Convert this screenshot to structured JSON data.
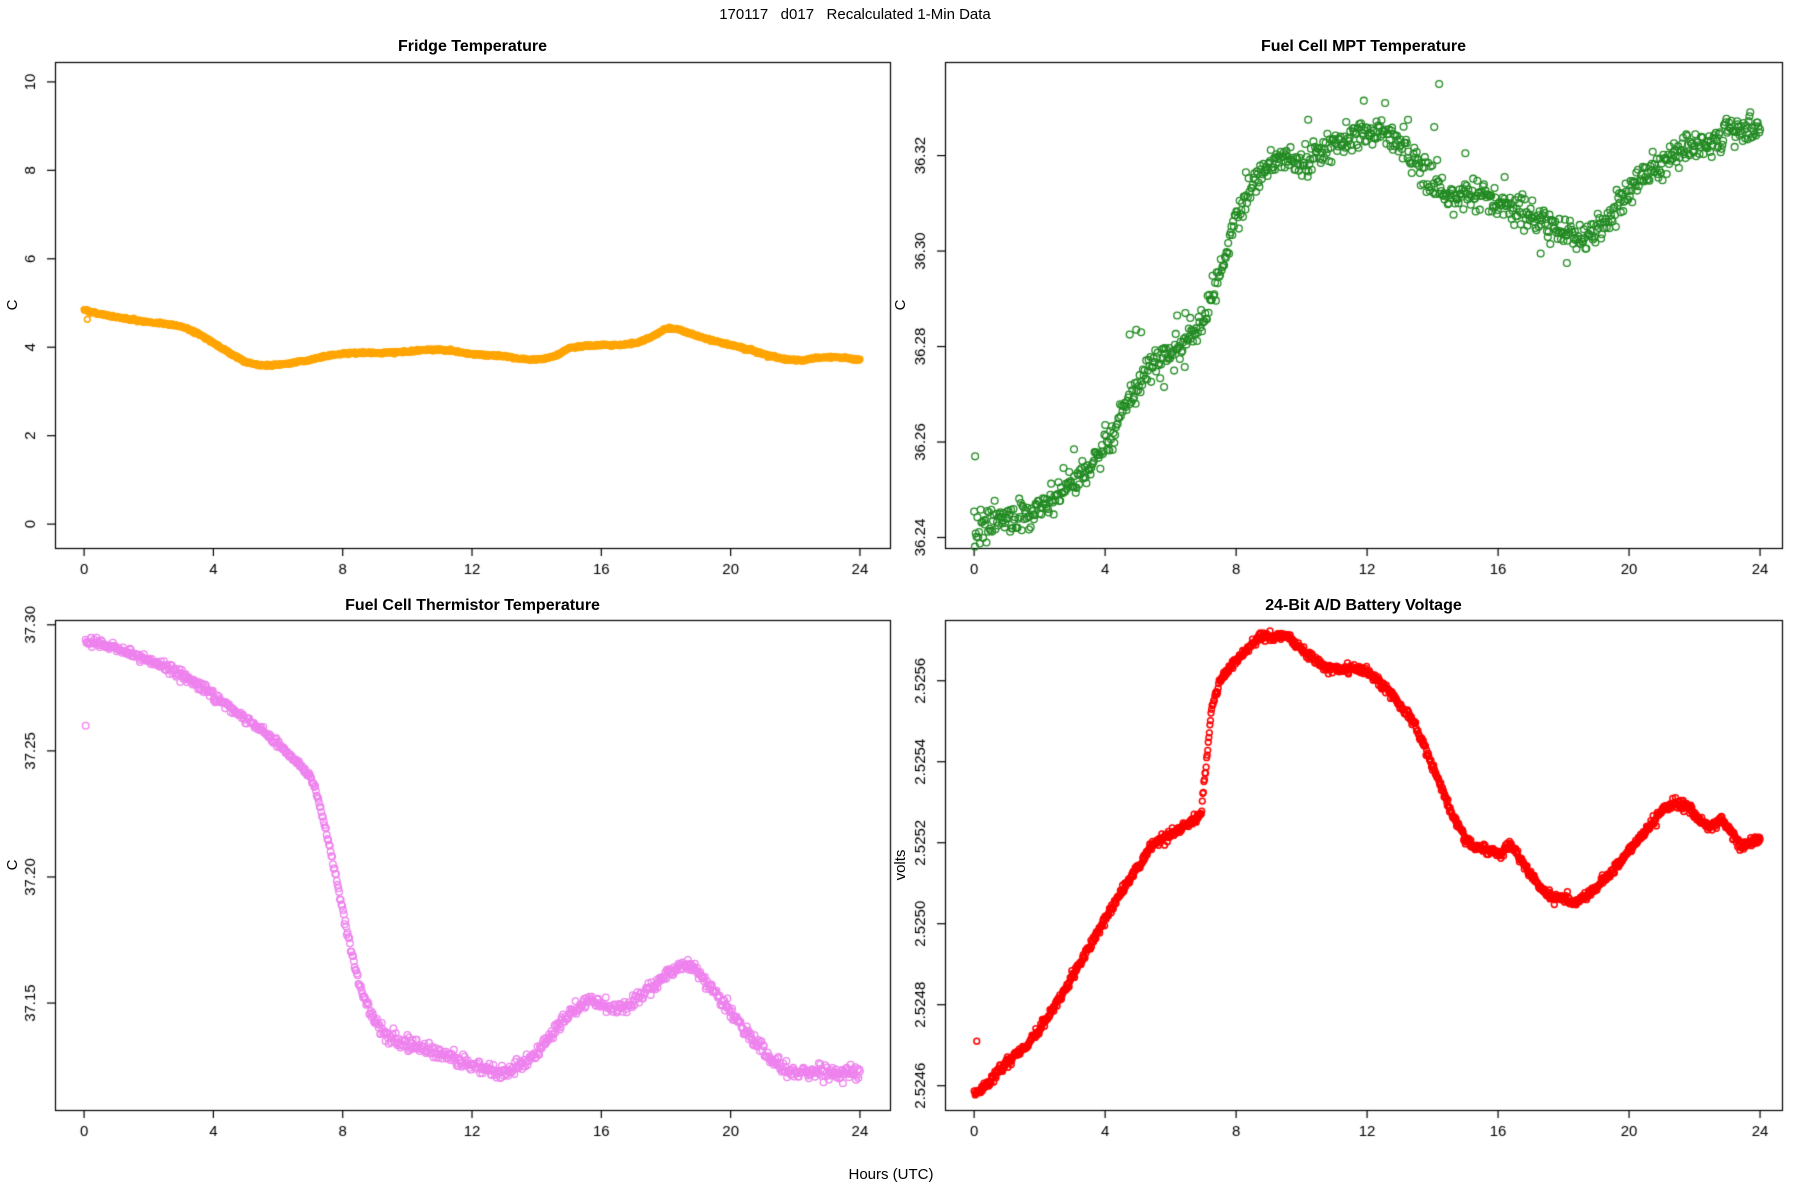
{
  "figure": {
    "main_title": "170117   d017   Recalculated 1-Min Data",
    "outer_xlabel": "Hours (UTC)",
    "background": "#ffffff",
    "axis_color": "#000000"
  },
  "chart_data": [
    {
      "id": "fridge-temperature",
      "type": "scatter",
      "title": "Fridge Temperature",
      "ylabel": "C",
      "marker": "open-circle",
      "color": "#FFA500",
      "xlim": [
        -0.9,
        24.93
      ],
      "ylim": [
        -0.54,
        10.45
      ],
      "xticks": [
        0,
        4,
        8,
        12,
        16,
        20,
        24
      ],
      "xtick_labels": [
        "0",
        "4",
        "8",
        "12",
        "16",
        "20",
        "24"
      ],
      "yticks": [
        0,
        2,
        4,
        6,
        8,
        10
      ],
      "ytick_labels": [
        "0",
        "2",
        "4",
        "6",
        "8",
        "10"
      ],
      "x_data_range": [
        0,
        24
      ],
      "n_points": 1441,
      "noise_sd": 0.012,
      "series_keypoints": {
        "x": [
          0,
          0.3,
          1,
          1.5,
          2,
          2.5,
          2.8,
          3.2,
          3.6,
          4,
          4.5,
          5,
          5.4,
          5.8,
          6.3,
          7,
          7.6,
          8,
          8.6,
          9.2,
          10,
          10.6,
          11,
          11.4,
          12,
          12.6,
          13,
          13.4,
          13.8,
          14.2,
          14.6,
          15,
          15.4,
          16,
          16.6,
          17.2,
          17.6,
          18,
          18.3,
          18.7,
          19.2,
          19.7,
          20.2,
          20.7,
          21.2,
          21.7,
          22.2,
          22.7,
          23.2,
          23.6,
          24
        ],
        "y": [
          4.85,
          4.78,
          4.68,
          4.62,
          4.57,
          4.53,
          4.5,
          4.42,
          4.28,
          4.1,
          3.87,
          3.67,
          3.6,
          3.59,
          3.63,
          3.72,
          3.82,
          3.86,
          3.88,
          3.87,
          3.9,
          3.94,
          3.95,
          3.92,
          3.84,
          3.82,
          3.8,
          3.75,
          3.72,
          3.73,
          3.81,
          3.98,
          4.03,
          4.05,
          4.05,
          4.12,
          4.25,
          4.43,
          4.42,
          4.32,
          4.2,
          4.1,
          4.02,
          3.92,
          3.8,
          3.73,
          3.7,
          3.76,
          3.78,
          3.75,
          3.72
        ]
      },
      "outliers": [
        [
          0.1,
          4.63
        ]
      ]
    },
    {
      "id": "fuel-cell-mpt-temperature",
      "type": "scatter",
      "title": "Fuel Cell MPT Temperature",
      "ylabel": "C",
      "marker": "open-circle",
      "color": "#228B22",
      "xlim": [
        -0.89,
        24.67
      ],
      "ylim": [
        36.2378,
        36.3396
      ],
      "xticks": [
        0,
        4,
        8,
        12,
        16,
        20,
        24
      ],
      "xtick_labels": [
        "0",
        "4",
        "8",
        "12",
        "16",
        "20",
        "24"
      ],
      "yticks": [
        36.24,
        36.26,
        36.28,
        36.3,
        36.32
      ],
      "ytick_labels": [
        "36.24",
        "36.26",
        "36.28",
        "36.30",
        "36.32"
      ],
      "x_data_range": [
        0,
        24
      ],
      "n_points": 960,
      "noise_sd": 0.0016,
      "noise_profile": [
        [
          0,
          0.002
        ],
        [
          3,
          0.0016
        ],
        [
          6,
          0.0018
        ],
        [
          7.5,
          0.0012
        ],
        [
          9,
          0.0016
        ],
        [
          24,
          0.0015
        ]
      ],
      "series_keypoints": {
        "x": [
          0,
          0.4,
          0.8,
          1.2,
          1.6,
          2,
          2.4,
          2.8,
          3.2,
          3.6,
          4,
          4.4,
          4.8,
          5.2,
          5.6,
          6,
          6.4,
          6.8,
          7.2,
          7.6,
          8,
          8.4,
          8.8,
          9.2,
          9.6,
          10,
          10.4,
          10.8,
          11.2,
          11.6,
          12,
          12.4,
          12.8,
          13.2,
          13.6,
          14,
          14.4,
          14.8,
          15.2,
          15.6,
          16,
          16.4,
          16.8,
          17.2,
          17.6,
          18,
          18.4,
          18.8,
          19.2,
          19.6,
          20,
          20.4,
          20.8,
          21.2,
          21.6,
          22,
          22.4,
          22.8,
          23.2,
          23.6,
          24
        ],
        "y": [
          36.2415,
          36.2425,
          36.2435,
          36.2445,
          36.2455,
          36.2465,
          36.248,
          36.25,
          36.2525,
          36.2555,
          36.259,
          36.2635,
          36.269,
          36.2735,
          36.2775,
          36.2795,
          36.2805,
          36.2825,
          36.289,
          36.298,
          36.3065,
          36.3125,
          36.3165,
          36.319,
          36.3195,
          36.3185,
          36.3195,
          36.3215,
          36.3235,
          36.3245,
          36.325,
          36.3255,
          36.324,
          36.321,
          36.3175,
          36.3145,
          36.3125,
          36.3115,
          36.312,
          36.3115,
          36.31,
          36.3085,
          36.3075,
          36.3065,
          36.306,
          36.304,
          36.3025,
          36.3035,
          36.306,
          36.309,
          36.3125,
          36.3155,
          36.318,
          36.3195,
          36.321,
          36.3225,
          36.322,
          36.3235,
          36.3245,
          36.3255,
          36.326
        ]
      },
      "outliers": [
        [
          0.03,
          36.257
        ],
        [
          14.2,
          36.335
        ],
        [
          4.75,
          36.2825
        ],
        [
          4.95,
          36.2835
        ],
        [
          5.1,
          36.283
        ],
        [
          6.2,
          36.2865
        ],
        [
          6.45,
          36.287
        ],
        [
          6.6,
          36.286
        ],
        [
          5.8,
          36.2715
        ],
        [
          3.05,
          36.2585
        ],
        [
          13.25,
          36.3275
        ],
        [
          14.05,
          36.326
        ],
        [
          15.0,
          36.3205
        ],
        [
          16.2,
          36.3155
        ],
        [
          17.3,
          36.2995
        ],
        [
          18.1,
          36.2975
        ],
        [
          12.55,
          36.331
        ],
        [
          11.9,
          36.3315
        ],
        [
          10.2,
          36.3275
        ],
        [
          8.3,
          36.3165
        ]
      ]
    },
    {
      "id": "fuel-cell-thermistor-temperature",
      "type": "scatter",
      "title": "Fuel Cell Thermistor Temperature",
      "ylabel": "C",
      "marker": "open-circle",
      "color": "#EE82EE",
      "xlim": [
        -0.9,
        24.93
      ],
      "ylim": [
        37.1076,
        37.3019
      ],
      "xticks": [
        0,
        4,
        8,
        12,
        16,
        20,
        24
      ],
      "xtick_labels": [
        "0",
        "4",
        "8",
        "12",
        "16",
        "20",
        "24"
      ],
      "yticks": [
        37.15,
        37.2,
        37.25,
        37.3
      ],
      "ytick_labels": [
        "37.15",
        "37.20",
        "37.25",
        "37.30"
      ],
      "x_data_range": [
        0.05,
        24
      ],
      "n_points": 1000,
      "noise_sd": 0.0011,
      "noise_profile": [
        [
          0,
          0.0008
        ],
        [
          3,
          0.001
        ],
        [
          6,
          0.0008
        ],
        [
          7.6,
          0.0005
        ],
        [
          9,
          0.0012
        ],
        [
          12,
          0.0014
        ],
        [
          15,
          0.0012
        ],
        [
          18,
          0.001
        ],
        [
          21,
          0.0014
        ],
        [
          24,
          0.0014
        ]
      ],
      "series_keypoints": {
        "x": [
          0.1,
          0.5,
          1,
          1.5,
          2,
          2.5,
          3,
          3.5,
          4,
          4.5,
          5,
          5.5,
          6,
          6.3,
          6.6,
          7,
          7.2,
          7.4,
          7.6,
          7.8,
          8,
          8.2,
          8.4,
          8.6,
          8.8,
          9,
          9.3,
          9.6,
          10,
          10.5,
          11,
          11.5,
          12,
          12.4,
          12.8,
          13.2,
          13.6,
          14,
          14.4,
          14.8,
          15.2,
          15.6,
          16,
          16.4,
          16.8,
          17.2,
          17.6,
          18,
          18.4,
          18.8,
          19.2,
          19.6,
          20,
          20.4,
          20.8,
          21.2,
          21.6,
          22,
          22.4,
          22.8,
          23.2,
          23.6,
          24
        ],
        "y": [
          37.294,
          37.2925,
          37.2905,
          37.2885,
          37.286,
          37.2835,
          37.2805,
          37.2765,
          37.272,
          37.2675,
          37.2625,
          37.258,
          37.2525,
          37.2495,
          37.2455,
          37.24,
          37.2335,
          37.2225,
          37.2115,
          37.1995,
          37.1875,
          37.1745,
          37.163,
          37.1545,
          37.1475,
          37.1425,
          37.138,
          37.1355,
          37.1335,
          37.132,
          37.1305,
          37.1285,
          37.1245,
          37.1235,
          37.1225,
          37.1235,
          37.1265,
          37.13,
          37.1365,
          37.1425,
          37.1475,
          37.1515,
          37.1495,
          37.1475,
          37.149,
          37.1525,
          37.1565,
          37.161,
          37.1645,
          37.1645,
          37.159,
          37.1525,
          37.1465,
          37.1405,
          37.134,
          37.128,
          37.1245,
          37.1225,
          37.1225,
          37.123,
          37.1225,
          37.1225,
          37.1225
        ]
      },
      "outliers": [
        [
          0.05,
          37.26
        ]
      ]
    },
    {
      "id": "battery-voltage",
      "type": "scatter",
      "title": "24-Bit A/D Battery Voltage",
      "ylabel": "volts",
      "marker": "open-circle",
      "color": "#FF0000",
      "xlim": [
        -0.89,
        24.67
      ],
      "ylim": [
        2.52454,
        2.52575
      ],
      "xticks": [
        0,
        4,
        8,
        12,
        16,
        20,
        24
      ],
      "xtick_labels": [
        "0",
        "4",
        "8",
        "12",
        "16",
        "20",
        "24"
      ],
      "yticks": [
        2.5246,
        2.5248,
        2.525,
        2.5252,
        2.5254,
        2.5256
      ],
      "ytick_labels": [
        "2.5246",
        "2.5248",
        "2.5250",
        "2.5252",
        "2.5254",
        "2.5256"
      ],
      "x_data_range": [
        0,
        24
      ],
      "n_points": 1441,
      "noise_sd": 5.5e-06,
      "series_keypoints": {
        "x": [
          0,
          0.5,
          1,
          1.5,
          2,
          2.5,
          3,
          3.5,
          4,
          4.5,
          5,
          5.4,
          5.7,
          6.2,
          6.6,
          6.93,
          7.25,
          7.5,
          8,
          8.5,
          8.7,
          9.6,
          10,
          10.4,
          10.8,
          11.4,
          11.8,
          12.2,
          12.6,
          13,
          13.4,
          13.8,
          14.2,
          14.6,
          15,
          15.3,
          15.8,
          16.1,
          16.35,
          16.6,
          17,
          17.5,
          18,
          18.3,
          18.7,
          19,
          19.5,
          20,
          20.5,
          21,
          21.4,
          21.8,
          22.2,
          22.5,
          22.8,
          23.1,
          23.4,
          23.7,
          24
        ],
        "y": [
          2.52458,
          2.52461,
          2.52466,
          2.52469,
          2.52474,
          2.5248,
          2.52487,
          2.52494,
          2.52501,
          2.52508,
          2.52514,
          2.52519,
          2.52521,
          2.52523,
          2.52525,
          2.52527,
          2.52553,
          2.5256,
          2.52565,
          2.52569,
          2.52571,
          2.52571,
          2.52568,
          2.52565,
          2.52563,
          2.52563,
          2.52563,
          2.52561,
          2.52558,
          2.52554,
          2.5255,
          2.52543,
          2.52535,
          2.52527,
          2.52521,
          2.52519,
          2.52518,
          2.52517,
          2.5252,
          2.52517,
          2.52512,
          2.52507,
          2.52506,
          2.52505,
          2.52507,
          2.52509,
          2.52513,
          2.52518,
          2.52523,
          2.52528,
          2.5253,
          2.52529,
          2.52525,
          2.52524,
          2.52526,
          2.52523,
          2.52519,
          2.5252,
          2.52521
        ]
      },
      "outliers": [
        [
          0.08,
          2.52471
        ]
      ]
    }
  ]
}
